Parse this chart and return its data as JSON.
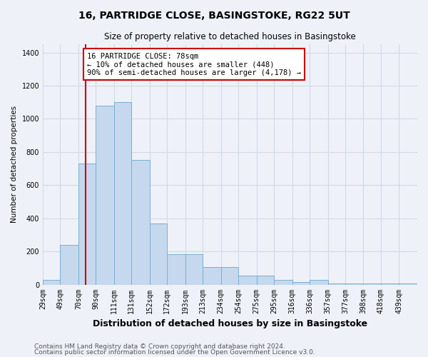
{
  "title": "16, PARTRIDGE CLOSE, BASINGSTOKE, RG22 5UT",
  "subtitle": "Size of property relative to detached houses in Basingstoke",
  "xlabel": "Distribution of detached houses by size in Basingstoke",
  "ylabel": "Number of detached properties",
  "footer_line1": "Contains HM Land Registry data © Crown copyright and database right 2024.",
  "footer_line2": "Contains public sector information licensed under the Open Government Licence v3.0.",
  "bin_labels": [
    "29sqm",
    "49sqm",
    "70sqm",
    "90sqm",
    "111sqm",
    "131sqm",
    "152sqm",
    "172sqm",
    "193sqm",
    "213sqm",
    "234sqm",
    "254sqm",
    "275sqm",
    "295sqm",
    "316sqm",
    "336sqm",
    "357sqm",
    "377sqm",
    "398sqm",
    "418sqm",
    "439sqm"
  ],
  "bar_values": [
    30,
    240,
    730,
    1080,
    1100,
    750,
    370,
    185,
    185,
    105,
    105,
    55,
    55,
    30,
    15,
    30,
    5,
    5,
    5,
    5,
    5
  ],
  "bar_color": "#c5d8ed",
  "bar_edge_color": "#7bafd4",
  "background_color": "#eef2f8",
  "grid_color": "#d0d8e8",
  "vline_color": "#cc0000",
  "annotation_text": "16 PARTRIDGE CLOSE: 78sqm\n← 10% of detached houses are smaller (448)\n90% of semi-detached houses are larger (4,178) →",
  "annotation_box_color": "#ffffff",
  "annotation_box_edge_color": "#cc0000",
  "ylim": [
    0,
    1450
  ],
  "yticks": [
    0,
    200,
    400,
    600,
    800,
    1000,
    1200,
    1400
  ],
  "bin_edges": [
    29,
    49,
    70,
    90,
    111,
    131,
    152,
    172,
    193,
    213,
    234,
    254,
    275,
    295,
    316,
    336,
    357,
    377,
    398,
    418,
    439,
    460
  ],
  "vline_x_idx": 2,
  "title_fontsize": 10,
  "subtitle_fontsize": 8.5,
  "annotation_fontsize": 7.5,
  "ylabel_fontsize": 7.5,
  "xlabel_fontsize": 9,
  "tick_fontsize": 7,
  "footer_fontsize": 6.5
}
